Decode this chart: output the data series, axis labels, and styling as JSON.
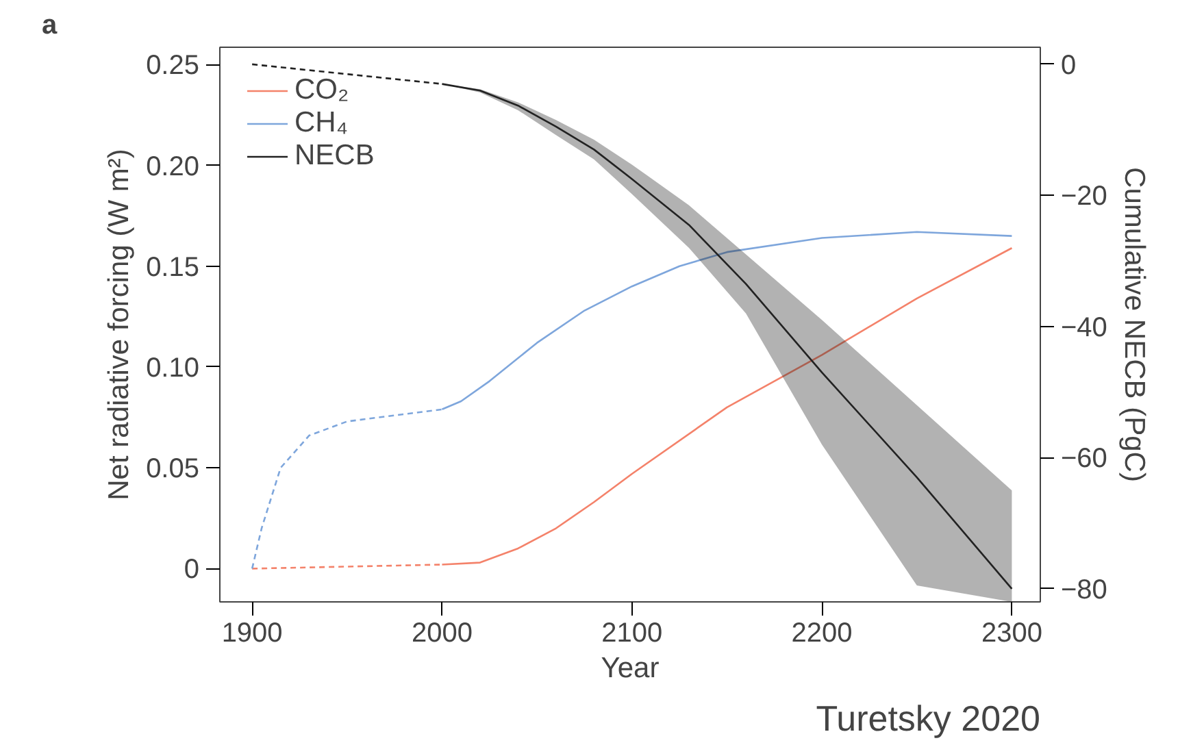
{
  "chart_data": {
    "type": "line",
    "title": "a",
    "xlabel": "Year",
    "ylabel": "Net radiative forcing (W m²)",
    "y2label": "Cumulative NECB (PgC)",
    "annotations": [
      "Turetsky 2020"
    ],
    "xlim": [
      1883,
      2315
    ],
    "xticks": [
      1900,
      2000,
      2100,
      2200,
      2300
    ],
    "ylim": [
      -0.0165,
      0.2586
    ],
    "yticks": [
      {
        "value": 0,
        "label": "0"
      },
      {
        "value": 0.05,
        "label": "0.05"
      },
      {
        "value": 0.1,
        "label": "0.10"
      },
      {
        "value": 0.15,
        "label": "0.15"
      },
      {
        "value": 0.2,
        "label": "0.20"
      },
      {
        "value": 0.25,
        "label": "0.25"
      }
    ],
    "y2lim": [
      -82,
      2.6
    ],
    "y2ticks": [
      {
        "value": 0,
        "label": "0"
      },
      {
        "value": -20,
        "label": "−20"
      },
      {
        "value": -40,
        "label": "−40"
      },
      {
        "value": -60,
        "label": "−60"
      },
      {
        "value": -80,
        "label": "−80"
      }
    ],
    "grid": false,
    "legend": "top left",
    "marker": "none",
    "series": [
      {
        "color": "#f4826a",
        "line_style": "dashed",
        "x": [
          1900,
          1950,
          2000
        ],
        "values": [
          0,
          0.001,
          0.002
        ]
      },
      {
        "color": "#7ea6dc",
        "line_style": "dashed",
        "x": [
          1900,
          1905,
          1915,
          1930,
          1950,
          1975,
          2000
        ],
        "values": [
          0,
          0.02,
          0.05,
          0.066,
          0.073,
          0.076,
          0.079
        ]
      },
      {
        "color": "#222222",
        "line_style": "dashed",
        "axis": "y2",
        "x": [
          1900,
          2000
        ],
        "values": [
          0,
          -3
        ]
      },
      {
        "name": "CO₂",
        "color": "#f4826a",
        "line_style": "solid",
        "x": [
          2000,
          2020,
          2040,
          2060,
          2080,
          2100,
          2150,
          2200,
          2250,
          2300
        ],
        "values": [
          0.002,
          0.003,
          0.01,
          0.02,
          0.033,
          0.047,
          0.08,
          0.106,
          0.134,
          0.159
        ]
      },
      {
        "name": "CH₄",
        "color": "#7ea6dc",
        "line_style": "solid",
        "x": [
          2000,
          2010,
          2025,
          2050,
          2075,
          2100,
          2125,
          2150,
          2200,
          2250,
          2300
        ],
        "values": [
          0.079,
          0.083,
          0.093,
          0.112,
          0.128,
          0.14,
          0.15,
          0.157,
          0.164,
          0.167,
          0.165
        ]
      },
      {
        "name": "NECB",
        "color": "#222222",
        "line_style": "solid",
        "axis": "y2",
        "x": [
          2000,
          2020,
          2040,
          2060,
          2080,
          2100,
          2130,
          2160,
          2200,
          2250,
          2300
        ],
        "values": [
          -3,
          -4,
          -6.3,
          -9.5,
          -13,
          -17.5,
          -24.5,
          -33.5,
          -47,
          -63,
          -80
        ],
        "lower": [
          -3,
          -4.3,
          -7,
          -10.8,
          -14.5,
          -19.8,
          -28,
          -38,
          -58,
          -79.5,
          -82
        ],
        "upper": [
          -3,
          -3.8,
          -5.8,
          -8.5,
          -11.5,
          -15.3,
          -21.5,
          -29,
          -39,
          -52,
          -65
        ]
      }
    ]
  }
}
